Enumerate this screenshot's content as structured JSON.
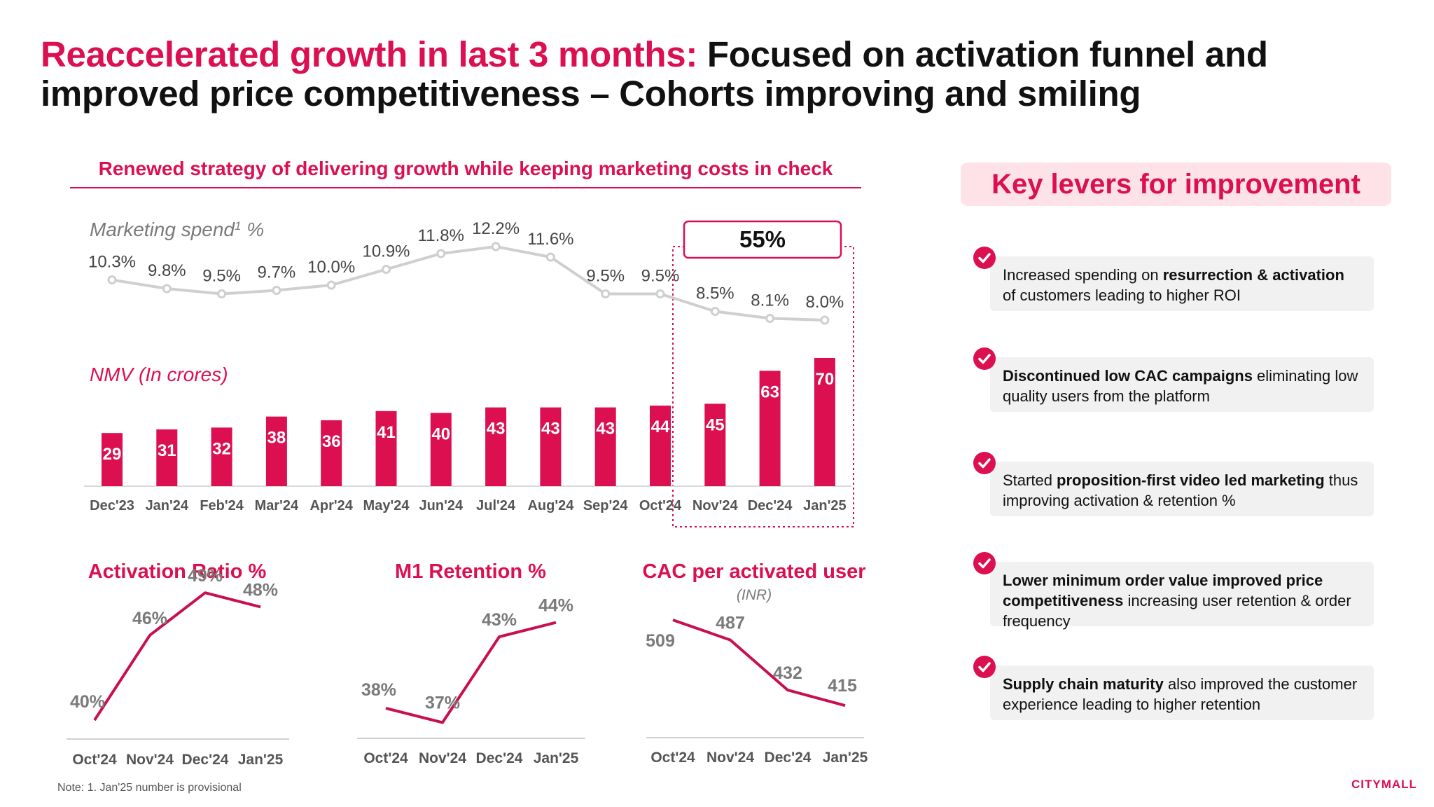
{
  "title": {
    "highlight": "Reaccelerated growth in last 3 months:",
    "rest": " Focused on activation funnel and improved price competitiveness – Cohorts improving and smiling"
  },
  "strategy_heading": "Renewed strategy of delivering growth while keeping marketing costs in check",
  "highlight_box": "55%",
  "levers": {
    "title": "Key levers for improvement",
    "items": [
      {
        "pre": "Increased spending on ",
        "bold": "resurrection & activation",
        "post": " of customers leading to higher ROI"
      },
      {
        "pre": "",
        "bold": "Discontinued low CAC campaigns",
        "post": " eliminating low quality users from the platform"
      },
      {
        "pre": "Started ",
        "bold": "proposition-first video led marketing",
        "post": " thus improving activation & retention %"
      },
      {
        "pre": "",
        "bold": "Lower minimum order value improved price competitiveness",
        "post": " increasing user retention & order frequency"
      },
      {
        "pre": "",
        "bold": "Supply chain maturity",
        "post": " also improved the customer experience leading to higher retention"
      }
    ]
  },
  "note": "Note: 1. Jan'25 number is provisional",
  "logo": "CITYMALL",
  "colors": {
    "accent": "#dc0f50",
    "line_grey": "#cfcfcf",
    "text_grey": "#7a7a7a"
  },
  "chart_data": [
    {
      "type": "line",
      "label": "Marketing spend",
      "label_superscript": "1",
      "label_suffix": " %",
      "categories": [
        "Dec'23",
        "Jan'24",
        "Feb'24",
        "Mar'24",
        "Apr'24",
        "May'24",
        "Jun'24",
        "Jul'24",
        "Aug'24",
        "Sep'24",
        "Oct'24",
        "Nov'24",
        "Dec'24",
        "Jan'25"
      ],
      "values": [
        10.3,
        9.8,
        9.5,
        9.7,
        10.0,
        10.9,
        11.8,
        12.2,
        11.6,
        9.5,
        9.5,
        8.5,
        8.1,
        8.0
      ],
      "labels": [
        "10.3%",
        "9.8%",
        "9.5%",
        "9.7%",
        "10.0%",
        "10.9%",
        "11.8%",
        "12.2%",
        "11.6%",
        "9.5%",
        "9.5%",
        "8.5%",
        "8.1%",
        "8.0%"
      ]
    },
    {
      "type": "bar",
      "label": "NMV (In crores)",
      "categories": [
        "Dec'23",
        "Jan'24",
        "Feb'24",
        "Mar'24",
        "Apr'24",
        "May'24",
        "Jun'24",
        "Jul'24",
        "Aug'24",
        "Sep'24",
        "Oct'24",
        "Nov'24",
        "Dec'24",
        "Jan'25"
      ],
      "values": [
        29,
        31,
        32,
        38,
        36,
        41,
        40,
        43,
        43,
        43,
        44,
        45,
        63,
        70
      ]
    },
    {
      "type": "line",
      "title": "Activation Ratio %",
      "categories": [
        "Oct'24",
        "Nov'24",
        "Dec'24",
        "Jan'25"
      ],
      "values": [
        40,
        46,
        49,
        48
      ],
      "labels": [
        "40%",
        "46%",
        "49%",
        "48%"
      ]
    },
    {
      "type": "line",
      "title": "M1 Retention %",
      "categories": [
        "Oct'24",
        "Nov'24",
        "Dec'24",
        "Jan'25"
      ],
      "values": [
        38,
        37,
        43,
        44
      ],
      "labels": [
        "38%",
        "37%",
        "43%",
        "44%"
      ]
    },
    {
      "type": "line",
      "title": "CAC per activated user",
      "subtitle": "(INR)",
      "categories": [
        "Oct'24",
        "Nov'24",
        "Dec'24",
        "Jan'25"
      ],
      "values": [
        509,
        487,
        432,
        415
      ],
      "labels": [
        "509",
        "487",
        "432",
        "415"
      ]
    }
  ]
}
